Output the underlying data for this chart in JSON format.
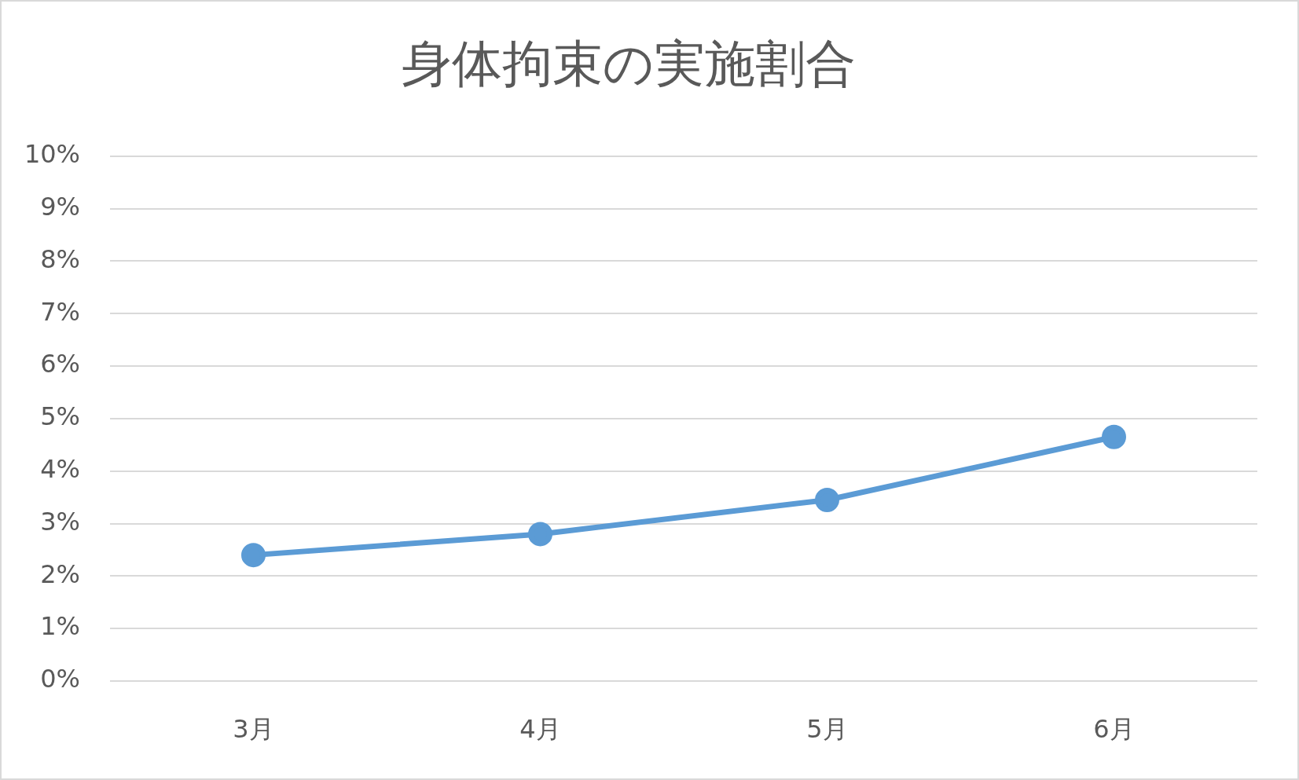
{
  "chart_data": {
    "type": "line",
    "title": "身体拘束の実施割合",
    "categories": [
      "3月",
      "4月",
      "5月",
      "6月"
    ],
    "series": [
      {
        "color": "#5b9bd5",
        "values": [
          2.4,
          2.8,
          3.45,
          4.65
        ]
      }
    ],
    "ylim": [
      0,
      10
    ],
    "yticks": [
      {
        "value": 0,
        "label": "0%"
      },
      {
        "value": 1,
        "label": "1%"
      },
      {
        "value": 2,
        "label": "2%"
      },
      {
        "value": 3,
        "label": "3%"
      },
      {
        "value": 4,
        "label": "4%"
      },
      {
        "value": 5,
        "label": "5%"
      },
      {
        "value": 6,
        "label": "6%"
      },
      {
        "value": 7,
        "label": "7%"
      },
      {
        "value": 8,
        "label": "8%"
      },
      {
        "value": 9,
        "label": "9%"
      },
      {
        "value": 10,
        "label": "10%"
      }
    ],
    "grid": "y",
    "marker": "circle",
    "line_style": "solid"
  }
}
